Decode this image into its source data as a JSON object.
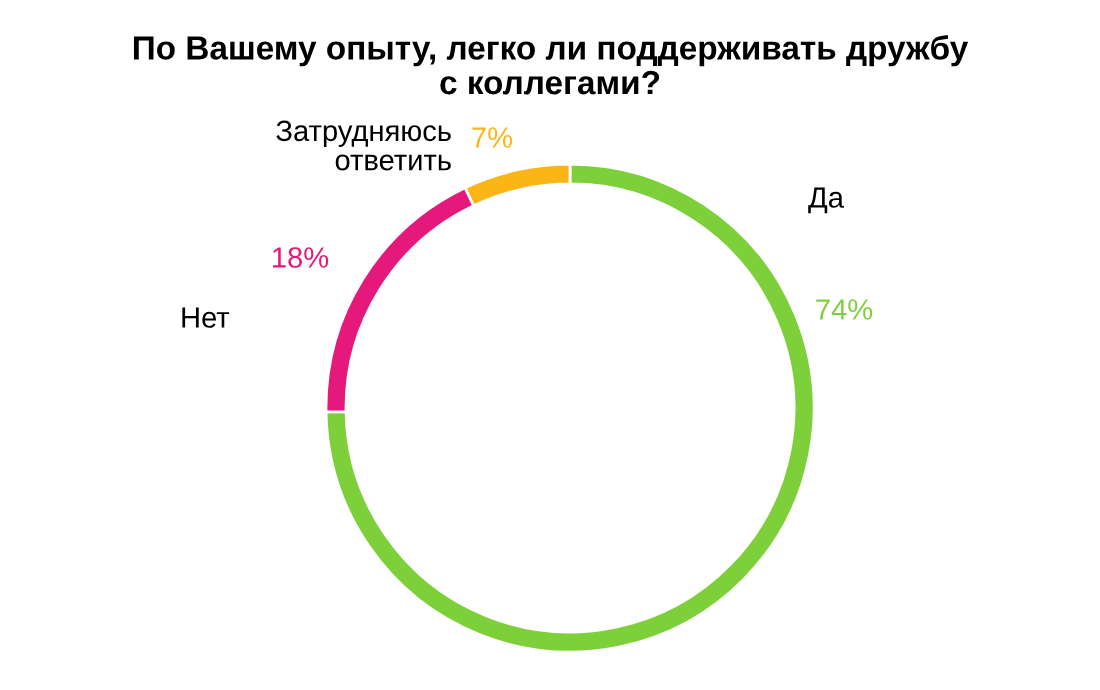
{
  "chart_data": {
    "type": "donut",
    "title": "По Вашему опыту, легко ли поддерживать дружбу\nс коллегами?",
    "categories": [
      "Да",
      "Нет",
      "Затрудняюсь\nответить"
    ],
    "values": [
      74,
      18,
      7
    ],
    "colors": [
      "#7ed03a",
      "#e5197b",
      "#fbb615"
    ],
    "value_labels": [
      "74%",
      "18%",
      "7%"
    ],
    "legend": false
  }
}
